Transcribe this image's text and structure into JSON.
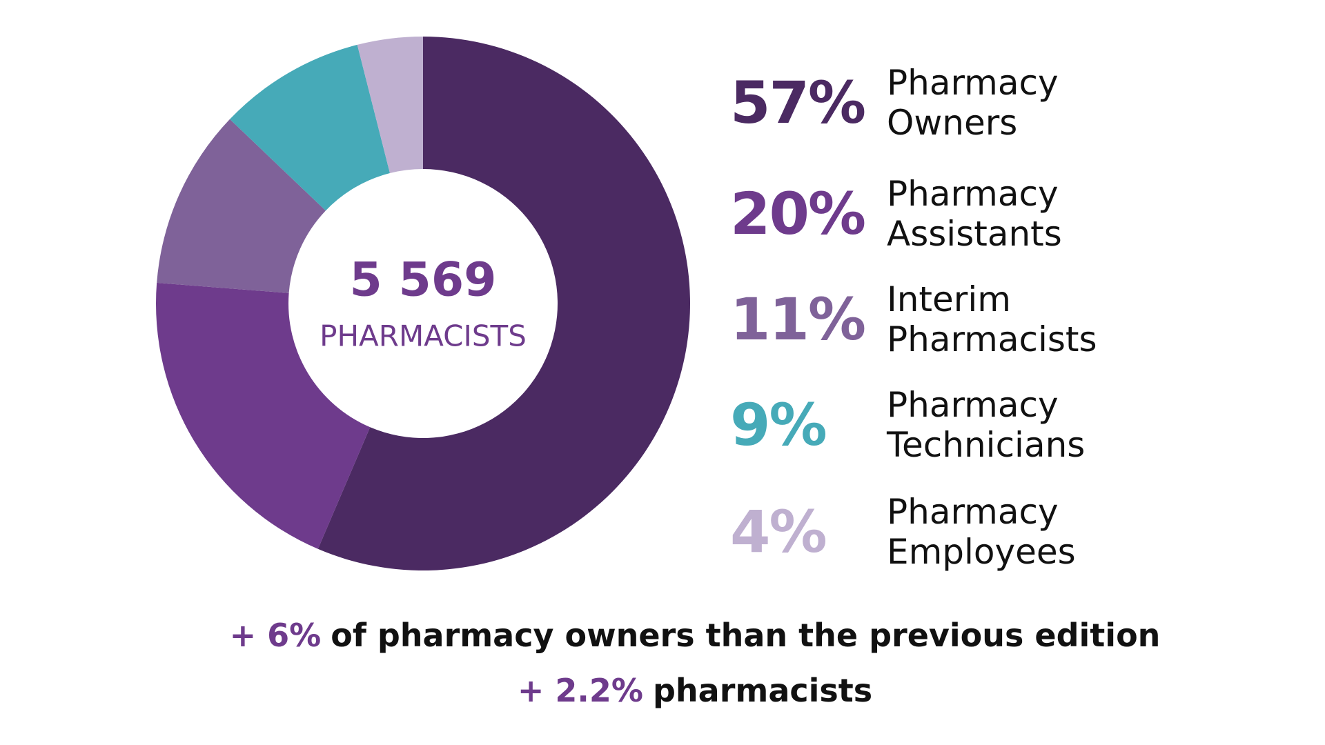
{
  "chart_data": {
    "type": "pie",
    "donut": true,
    "categories": [
      "Pharmacy Owners",
      "Pharmacy Assistants",
      "Interim Pharmacists",
      "Pharmacy Technicians",
      "Pharmacy Employees"
    ],
    "values": [
      57,
      20,
      11,
      9,
      4
    ],
    "value_labels": [
      "57%",
      "20%",
      "11%",
      "9%",
      "4%"
    ],
    "colors": [
      "#4b2a62",
      "#6e3b8c",
      "#7f6299",
      "#46aab8",
      "#bfb0d0"
    ],
    "center_value": "5 569",
    "center_label": "PHARMACISTS",
    "notes": [
      {
        "highlight": "+ 6%",
        "text": "of pharmacy owners than the previous edition"
      },
      {
        "highlight": "+ 2.2%",
        "text": "pharmacists"
      }
    ]
  }
}
